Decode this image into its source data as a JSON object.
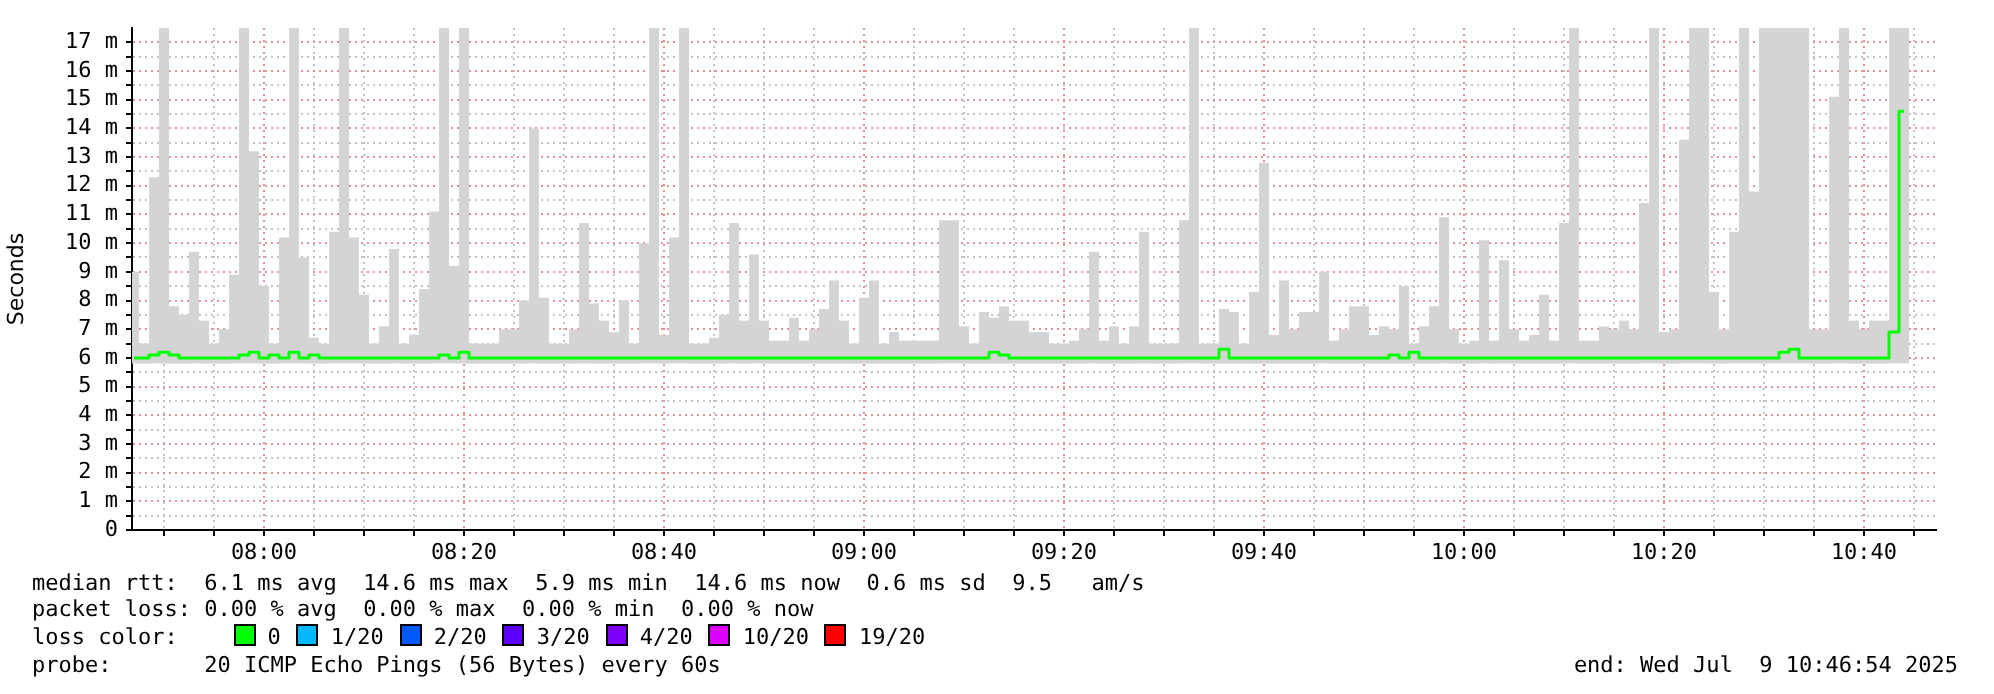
{
  "chart_data": {
    "type": "step",
    "ylabel": "Seconds",
    "x": [
      "2025-07-09T07:47",
      "2025-07-09T07:48",
      "2025-07-09T07:49",
      "2025-07-09T07:50",
      "2025-07-09T07:51",
      "2025-07-09T07:52",
      "2025-07-09T07:53",
      "2025-07-09T07:54",
      "2025-07-09T07:55",
      "2025-07-09T07:56",
      "2025-07-09T07:57",
      "2025-07-09T07:58",
      "2025-07-09T07:59",
      "2025-07-09T08:00",
      "2025-07-09T08:01",
      "2025-07-09T08:02",
      "2025-07-09T08:03",
      "2025-07-09T08:04",
      "2025-07-09T08:05",
      "2025-07-09T08:06",
      "2025-07-09T08:07",
      "2025-07-09T08:08",
      "2025-07-09T08:09",
      "2025-07-09T08:10",
      "2025-07-09T08:11",
      "2025-07-09T08:12",
      "2025-07-09T08:13",
      "2025-07-09T08:14",
      "2025-07-09T08:15",
      "2025-07-09T08:16",
      "2025-07-09T08:17",
      "2025-07-09T08:18",
      "2025-07-09T08:19",
      "2025-07-09T08:20",
      "2025-07-09T08:21",
      "2025-07-09T08:22",
      "2025-07-09T08:23",
      "2025-07-09T08:24",
      "2025-07-09T08:25",
      "2025-07-09T08:26",
      "2025-07-09T08:27",
      "2025-07-09T08:28",
      "2025-07-09T08:29",
      "2025-07-09T08:30",
      "2025-07-09T08:31",
      "2025-07-09T08:32",
      "2025-07-09T08:33",
      "2025-07-09T08:34",
      "2025-07-09T08:35",
      "2025-07-09T08:36",
      "2025-07-09T08:37",
      "2025-07-09T08:38",
      "2025-07-09T08:39",
      "2025-07-09T08:40",
      "2025-07-09T08:41",
      "2025-07-09T08:42",
      "2025-07-09T08:43",
      "2025-07-09T08:44",
      "2025-07-09T08:45",
      "2025-07-09T08:46",
      "2025-07-09T08:47",
      "2025-07-09T08:48",
      "2025-07-09T08:49",
      "2025-07-09T08:50",
      "2025-07-09T08:51",
      "2025-07-09T08:52",
      "2025-07-09T08:53",
      "2025-07-09T08:54",
      "2025-07-09T08:55",
      "2025-07-09T08:56",
      "2025-07-09T08:57",
      "2025-07-09T08:58",
      "2025-07-09T08:59",
      "2025-07-09T09:00",
      "2025-07-09T09:01",
      "2025-07-09T09:02",
      "2025-07-09T09:03",
      "2025-07-09T09:04",
      "2025-07-09T09:05",
      "2025-07-09T09:06",
      "2025-07-09T09:07",
      "2025-07-09T09:08",
      "2025-07-09T09:09",
      "2025-07-09T09:10",
      "2025-07-09T09:11",
      "2025-07-09T09:12",
      "2025-07-09T09:13",
      "2025-07-09T09:14",
      "2025-07-09T09:15",
      "2025-07-09T09:16",
      "2025-07-09T09:17",
      "2025-07-09T09:18",
      "2025-07-09T09:19",
      "2025-07-09T09:20",
      "2025-07-09T09:21",
      "2025-07-09T09:22",
      "2025-07-09T09:23",
      "2025-07-09T09:24",
      "2025-07-09T09:25",
      "2025-07-09T09:26",
      "2025-07-09T09:27",
      "2025-07-09T09:28",
      "2025-07-09T09:29",
      "2025-07-09T09:30",
      "2025-07-09T09:31",
      "2025-07-09T09:32",
      "2025-07-09T09:33",
      "2025-07-09T09:34",
      "2025-07-09T09:35",
      "2025-07-09T09:36",
      "2025-07-09T09:37",
      "2025-07-09T09:38",
      "2025-07-09T09:39",
      "2025-07-09T09:40",
      "2025-07-09T09:41",
      "2025-07-09T09:42",
      "2025-07-09T09:43",
      "2025-07-09T09:44",
      "2025-07-09T09:45",
      "2025-07-09T09:46",
      "2025-07-09T09:47",
      "2025-07-09T09:48",
      "2025-07-09T09:49",
      "2025-07-09T09:50",
      "2025-07-09T09:51",
      "2025-07-09T09:52",
      "2025-07-09T09:53",
      "2025-07-09T09:54",
      "2025-07-09T09:55",
      "2025-07-09T09:56",
      "2025-07-09T09:57",
      "2025-07-09T09:58",
      "2025-07-09T09:59",
      "2025-07-09T10:00",
      "2025-07-09T10:01",
      "2025-07-09T10:02",
      "2025-07-09T10:03",
      "2025-07-09T10:04",
      "2025-07-09T10:05",
      "2025-07-09T10:06",
      "2025-07-09T10:07",
      "2025-07-09T10:08",
      "2025-07-09T10:09",
      "2025-07-09T10:10",
      "2025-07-09T10:11",
      "2025-07-09T10:12",
      "2025-07-09T10:13",
      "2025-07-09T10:14",
      "2025-07-09T10:15",
      "2025-07-09T10:16",
      "2025-07-09T10:17",
      "2025-07-09T10:18",
      "2025-07-09T10:19",
      "2025-07-09T10:20",
      "2025-07-09T10:21",
      "2025-07-09T10:22",
      "2025-07-09T10:23",
      "2025-07-09T10:24",
      "2025-07-09T10:25",
      "2025-07-09T10:26",
      "2025-07-09T10:27",
      "2025-07-09T10:28",
      "2025-07-09T10:29",
      "2025-07-09T10:30",
      "2025-07-09T10:31",
      "2025-07-09T10:32",
      "2025-07-09T10:33",
      "2025-07-09T10:34",
      "2025-07-09T10:35",
      "2025-07-09T10:36",
      "2025-07-09T10:37",
      "2025-07-09T10:38",
      "2025-07-09T10:39",
      "2025-07-09T10:40",
      "2025-07-09T10:41",
      "2025-07-09T10:42",
      "2025-07-09T10:43",
      "2025-07-09T10:44"
    ],
    "series": [
      {
        "color": "#00ff00",
        "values": [
          6.0,
          6.0,
          6.1,
          6.2,
          6.1,
          6.0,
          6.0,
          6.0,
          6.0,
          6.0,
          6.0,
          6.1,
          6.2,
          6.0,
          6.1,
          6.0,
          6.2,
          6.0,
          6.1,
          6.0,
          6.0,
          6.0,
          6.0,
          6.0,
          6.0,
          6.0,
          6.0,
          6.0,
          6.0,
          6.0,
          6.0,
          6.1,
          6.0,
          6.2,
          6.0,
          6.0,
          6.0,
          6.0,
          6.0,
          6.0,
          6.0,
          6.0,
          6.0,
          6.0,
          6.0,
          6.0,
          6.0,
          6.0,
          6.0,
          6.0,
          6.0,
          6.0,
          6.0,
          6.0,
          6.0,
          6.0,
          6.0,
          6.0,
          6.0,
          6.0,
          6.0,
          6.0,
          6.0,
          6.0,
          6.0,
          6.0,
          6.0,
          6.0,
          6.0,
          6.0,
          6.0,
          6.0,
          6.0,
          6.0,
          6.0,
          6.0,
          6.0,
          6.0,
          6.0,
          6.0,
          6.0,
          6.0,
          6.0,
          6.0,
          6.0,
          6.0,
          6.2,
          6.1,
          6.0,
          6.0,
          6.0,
          6.0,
          6.0,
          6.0,
          6.0,
          6.0,
          6.0,
          6.0,
          6.0,
          6.0,
          6.0,
          6.0,
          6.0,
          6.0,
          6.0,
          6.0,
          6.0,
          6.0,
          6.0,
          6.3,
          6.0,
          6.0,
          6.0,
          6.0,
          6.0,
          6.0,
          6.0,
          6.0,
          6.0,
          6.0,
          6.0,
          6.0,
          6.0,
          6.0,
          6.0,
          6.0,
          6.1,
          6.0,
          6.2,
          6.0,
          6.0,
          6.0,
          6.0,
          6.0,
          6.0,
          6.0,
          6.0,
          6.0,
          6.0,
          6.0,
          6.0,
          6.0,
          6.0,
          6.0,
          6.0,
          6.0,
          6.0,
          6.0,
          6.0,
          6.0,
          6.0,
          6.0,
          6.0,
          6.0,
          6.0,
          6.0,
          6.0,
          6.0,
          6.0,
          6.0,
          6.0,
          6.0,
          6.0,
          6.0,
          6.0,
          6.2,
          6.3,
          6.0,
          6.0,
          6.0,
          6.0,
          6.0,
          6.0,
          6.0,
          6.0,
          6.0,
          6.9,
          14.6
        ],
        "lower": [
          5.8,
          5.8,
          5.8,
          5.8,
          5.8,
          5.8,
          5.8,
          5.8,
          5.8,
          5.8,
          5.8,
          5.8,
          5.8,
          5.8,
          5.8,
          5.8,
          5.8,
          5.8,
          5.8,
          5.8,
          5.8,
          5.8,
          5.8,
          5.8,
          5.8,
          5.8,
          5.8,
          5.8,
          5.8,
          5.8,
          5.8,
          5.8,
          5.8,
          5.8,
          5.8,
          5.8,
          5.8,
          5.8,
          5.8,
          5.8,
          5.8,
          5.8,
          5.8,
          5.8,
          5.8,
          5.8,
          5.8,
          5.8,
          5.8,
          5.8,
          5.8,
          5.8,
          5.8,
          5.8,
          5.8,
          5.8,
          5.8,
          5.8,
          5.8,
          5.8,
          5.8,
          5.8,
          5.8,
          5.8,
          5.8,
          5.8,
          5.8,
          5.8,
          5.8,
          5.8,
          5.8,
          5.8,
          5.8,
          5.8,
          5.8,
          5.8,
          5.8,
          5.8,
          5.8,
          5.8,
          5.8,
          5.8,
          5.8,
          5.8,
          5.8,
          5.8,
          5.8,
          5.8,
          5.8,
          5.8,
          5.8,
          5.8,
          5.8,
          5.8,
          5.8,
          5.8,
          5.8,
          5.8,
          5.8,
          5.8,
          5.8,
          5.8,
          5.8,
          5.8,
          5.8,
          5.8,
          5.8,
          5.8,
          5.8,
          5.8,
          5.8,
          5.8,
          5.8,
          5.8,
          5.8,
          5.8,
          5.8,
          5.8,
          5.8,
          5.8,
          5.8,
          5.8,
          5.8,
          5.8,
          5.8,
          5.8,
          5.8,
          5.8,
          5.8,
          5.8,
          5.8,
          5.8,
          5.8,
          5.8,
          5.8,
          5.8,
          5.8,
          5.8,
          5.8,
          5.8,
          5.8,
          5.8,
          5.8,
          5.8,
          5.8,
          5.8,
          5.8,
          5.8,
          5.8,
          5.8,
          5.8,
          5.8,
          5.8,
          5.8,
          5.8,
          5.8,
          5.8,
          5.8,
          5.8,
          5.8,
          5.8,
          5.8,
          5.8,
          5.8,
          5.8,
          5.8,
          5.8,
          5.8,
          5.8,
          5.8,
          5.8,
          5.8,
          5.8,
          5.8,
          5.8,
          5.8,
          5.8,
          5.8
        ],
        "upper": [
          9.0,
          6.5,
          12.3,
          17.5,
          7.8,
          7.5,
          9.7,
          7.3,
          6.5,
          7.0,
          8.9,
          17.5,
          13.2,
          8.5,
          6.5,
          10.2,
          17.5,
          9.5,
          6.7,
          6.5,
          10.4,
          17.5,
          10.2,
          8.2,
          6.5,
          7.1,
          9.8,
          6.5,
          6.8,
          8.4,
          11.1,
          17.5,
          9.2,
          17.5,
          6.5,
          6.5,
          6.5,
          7.0,
          7.0,
          8.0,
          14.0,
          8.1,
          6.5,
          6.5,
          7.0,
          10.7,
          7.9,
          7.3,
          6.9,
          8.0,
          6.5,
          10.0,
          17.5,
          6.8,
          10.2,
          17.5,
          6.5,
          6.5,
          6.7,
          7.5,
          10.7,
          7.3,
          9.6,
          7.3,
          6.6,
          6.6,
          7.4,
          6.6,
          7.0,
          7.7,
          8.7,
          7.3,
          6.5,
          8.1,
          8.7,
          6.5,
          6.9,
          6.6,
          6.6,
          6.6,
          6.6,
          10.8,
          10.8,
          7.1,
          6.5,
          7.6,
          7.4,
          7.8,
          7.3,
          7.3,
          6.9,
          6.9,
          6.5,
          6.5,
          6.6,
          7.0,
          9.7,
          6.6,
          7.1,
          6.5,
          7.1,
          10.4,
          6.5,
          6.5,
          6.5,
          10.8,
          17.5,
          6.5,
          6.5,
          7.7,
          7.6,
          6.5,
          8.3,
          12.8,
          6.8,
          8.7,
          7.0,
          7.6,
          7.6,
          9.0,
          6.6,
          7.0,
          7.8,
          7.8,
          6.8,
          7.1,
          7.0,
          8.5,
          6.5,
          7.1,
          7.8,
          10.9,
          7.0,
          6.5,
          6.6,
          10.1,
          6.6,
          9.4,
          7.0,
          6.6,
          6.8,
          8.2,
          6.6,
          10.7,
          17.5,
          6.6,
          6.6,
          7.1,
          7.0,
          7.3,
          7.0,
          11.4,
          17.5,
          6.9,
          7.0,
          13.6,
          17.5,
          17.5,
          8.3,
          7.0,
          10.4,
          17.5,
          11.8,
          17.5,
          17.5,
          17.5,
          17.5,
          17.5,
          7.0,
          7.0,
          15.1,
          17.5,
          7.3,
          7.0,
          7.3,
          7.3,
          17.5,
          17.5
        ]
      }
    ],
    "xlim": [
      "2025-07-09T07:46:48",
      "2025-07-09T10:47:12"
    ],
    "xticks": [
      {
        "value": "2025-07-09T07:50",
        "label": null
      },
      {
        "value": "2025-07-09T07:55",
        "label": null
      },
      {
        "value": "2025-07-09T08:00",
        "label": "08:00"
      },
      {
        "value": "2025-07-09T08:05",
        "label": null
      },
      {
        "value": "2025-07-09T08:10",
        "label": null
      },
      {
        "value": "2025-07-09T08:15",
        "label": null
      },
      {
        "value": "2025-07-09T08:20",
        "label": "08:20"
      },
      {
        "value": "2025-07-09T08:25",
        "label": null
      },
      {
        "value": "2025-07-09T08:30",
        "label": null
      },
      {
        "value": "2025-07-09T08:35",
        "label": null
      },
      {
        "value": "2025-07-09T08:40",
        "label": "08:40"
      },
      {
        "value": "2025-07-09T08:45",
        "label": null
      },
      {
        "value": "2025-07-09T08:50",
        "label": null
      },
      {
        "value": "2025-07-09T08:55",
        "label": null
      },
      {
        "value": "2025-07-09T09:00",
        "label": "09:00"
      },
      {
        "value": "2025-07-09T09:05",
        "label": null
      },
      {
        "value": "2025-07-09T09:10",
        "label": null
      },
      {
        "value": "2025-07-09T09:15",
        "label": null
      },
      {
        "value": "2025-07-09T09:20",
        "label": "09:20"
      },
      {
        "value": "2025-07-09T09:25",
        "label": null
      },
      {
        "value": "2025-07-09T09:30",
        "label": null
      },
      {
        "value": "2025-07-09T09:35",
        "label": null
      },
      {
        "value": "2025-07-09T09:40",
        "label": "09:40"
      },
      {
        "value": "2025-07-09T09:45",
        "label": null
      },
      {
        "value": "2025-07-09T09:50",
        "label": null
      },
      {
        "value": "2025-07-09T09:55",
        "label": null
      },
      {
        "value": "2025-07-09T10:00",
        "label": "10:00"
      },
      {
        "value": "2025-07-09T10:05",
        "label": null
      },
      {
        "value": "2025-07-09T10:10",
        "label": null
      },
      {
        "value": "2025-07-09T10:15",
        "label": null
      },
      {
        "value": "2025-07-09T10:20",
        "label": "10:20"
      },
      {
        "value": "2025-07-09T10:25",
        "label": null
      },
      {
        "value": "2025-07-09T10:30",
        "label": null
      },
      {
        "value": "2025-07-09T10:35",
        "label": null
      },
      {
        "value": "2025-07-09T10:40",
        "label": "10:40"
      },
      {
        "value": "2025-07-09T10:45",
        "label": null
      }
    ],
    "ylim": [
      0,
      17.5
    ],
    "yticks": [
      0,
      {
        "value": 0.5,
        "label": null
      },
      {
        "value": 1,
        "label": "1 m"
      },
      {
        "value": 1.5,
        "label": null
      },
      {
        "value": 2,
        "label": "2 m"
      },
      {
        "value": 2.5,
        "label": null
      },
      {
        "value": 3,
        "label": "3 m"
      },
      {
        "value": 3.5,
        "label": null
      },
      {
        "value": 4,
        "label": "4 m"
      },
      {
        "value": 4.5,
        "label": null
      },
      {
        "value": 5,
        "label": "5 m"
      },
      {
        "value": 5.5,
        "label": null
      },
      {
        "value": 6,
        "label": "6 m"
      },
      {
        "value": 6.5,
        "label": null
      },
      {
        "value": 7,
        "label": "7 m"
      },
      {
        "value": 7.5,
        "label": null
      },
      {
        "value": 8,
        "label": "8 m"
      },
      {
        "value": 8.5,
        "label": null
      },
      {
        "value": 9,
        "label": "9 m"
      },
      {
        "value": 9.5,
        "label": null
      },
      {
        "value": 10,
        "label": "10 m"
      },
      {
        "value": 10.5,
        "label": null
      },
      {
        "value": 11,
        "label": "11 m"
      },
      {
        "value": 11.5,
        "label": null
      },
      {
        "value": 12,
        "label": "12 m"
      },
      {
        "value": 12.5,
        "label": null
      },
      {
        "value": 13,
        "label": "13 m"
      },
      {
        "value": 13.5,
        "label": null
      },
      {
        "value": 14,
        "label": "14 m"
      },
      {
        "value": 14.5,
        "label": null
      },
      {
        "value": 15,
        "label": "15 m"
      },
      {
        "value": 15.5,
        "label": null
      },
      {
        "value": 16,
        "label": "16 m"
      },
      {
        "value": 16.5,
        "label": null
      },
      {
        "value": 17,
        "label": "17 m"
      }
    ],
    "grid": true,
    "annotations": [
      "median rtt:  6.1 ms avg  14.6 ms max  5.9 ms min  14.6 ms now  0.6 ms sd  9.5   am/s",
      "packet loss: 0.00 % avg  0.00 % max  0.00 % min  0.00 % now",
      "loss color:",
      "0",
      "1/20",
      "2/20",
      "3/20",
      "4/20",
      "10/20",
      "19/20",
      "probe:       20 ICMP Echo Pings (56 Bytes) every 60s",
      "end: Wed Jul  9 10:46:54 2025"
    ]
  }
}
